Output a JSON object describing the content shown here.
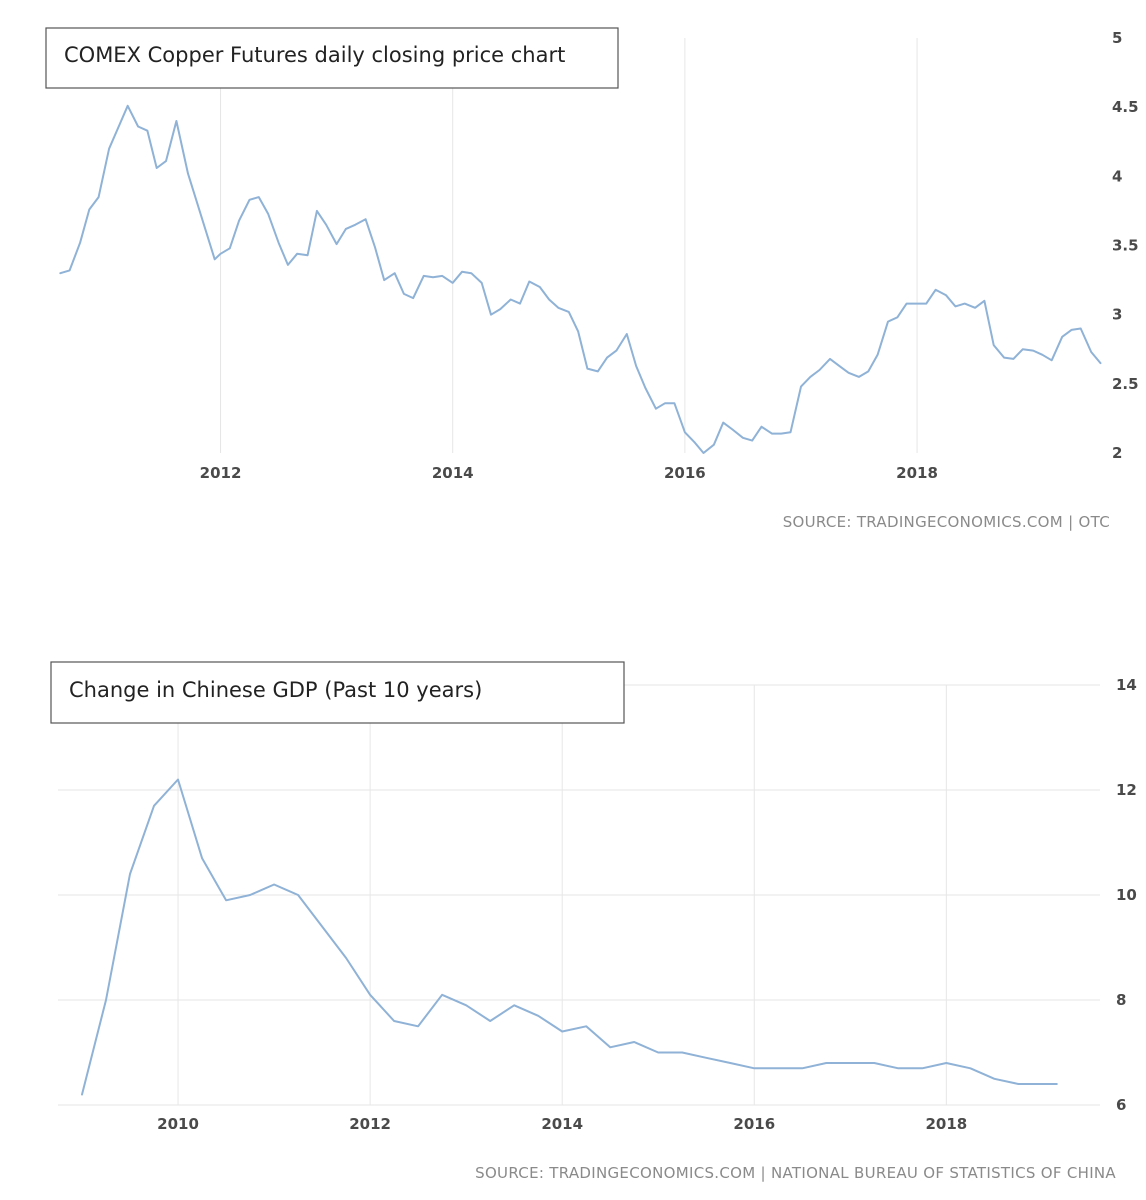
{
  "colors": {
    "line": "#8fb2d6",
    "grid": "#e6e6e6",
    "box_border": "#555555"
  },
  "chart_data": [
    {
      "type": "line",
      "title": "COMEX Copper Futures daily closing price chart",
      "source": "SOURCE: TRADINGECONOMICS.COM | OTC",
      "xlabel": "",
      "ylabel": "",
      "xlim": [
        2010.6,
        2019.55
      ],
      "ylim": [
        2,
        5
      ],
      "x_ticks": [
        2012,
        2014,
        2016,
        2018
      ],
      "y_ticks": [
        2,
        2.5,
        3,
        3.5,
        4,
        4.5,
        5
      ],
      "y_tick_labels": [
        "2",
        "2.5",
        "3",
        "3.5",
        "4",
        "4.5",
        "5"
      ],
      "y_axis_position": "right",
      "grid": "vertical",
      "series": [
        {
          "name": "",
          "points": [
            [
              2010.62,
              3.3
            ],
            [
              2010.7,
              3.32
            ],
            [
              2010.79,
              3.52
            ],
            [
              2010.87,
              3.76
            ],
            [
              2010.95,
              3.85
            ],
            [
              2011.04,
              4.2
            ],
            [
              2011.2,
              4.51
            ],
            [
              2011.29,
              4.36
            ],
            [
              2011.37,
              4.33
            ],
            [
              2011.45,
              4.06
            ],
            [
              2011.53,
              4.11
            ],
            [
              2011.62,
              4.4
            ],
            [
              2011.72,
              4.02
            ],
            [
              2011.95,
              3.4
            ],
            [
              2012.0,
              3.44
            ],
            [
              2012.08,
              3.48
            ],
            [
              2012.16,
              3.68
            ],
            [
              2012.25,
              3.83
            ],
            [
              2012.33,
              3.85
            ],
            [
              2012.41,
              3.73
            ],
            [
              2012.5,
              3.52
            ],
            [
              2012.58,
              3.36
            ],
            [
              2012.66,
              3.44
            ],
            [
              2012.75,
              3.43
            ],
            [
              2012.83,
              3.75
            ],
            [
              2012.91,
              3.65
            ],
            [
              2013.0,
              3.51
            ],
            [
              2013.08,
              3.62
            ],
            [
              2013.16,
              3.65
            ],
            [
              2013.25,
              3.69
            ],
            [
              2013.33,
              3.49
            ],
            [
              2013.41,
              3.25
            ],
            [
              2013.5,
              3.3
            ],
            [
              2013.58,
              3.15
            ],
            [
              2013.66,
              3.12
            ],
            [
              2013.75,
              3.28
            ],
            [
              2013.83,
              3.27
            ],
            [
              2013.91,
              3.28
            ],
            [
              2014.0,
              3.23
            ],
            [
              2014.08,
              3.31
            ],
            [
              2014.16,
              3.3
            ],
            [
              2014.25,
              3.23
            ],
            [
              2014.33,
              3.0
            ],
            [
              2014.41,
              3.04
            ],
            [
              2014.5,
              3.11
            ],
            [
              2014.58,
              3.08
            ],
            [
              2014.66,
              3.24
            ],
            [
              2014.75,
              3.2
            ],
            [
              2014.83,
              3.11
            ],
            [
              2014.91,
              3.05
            ],
            [
              2015.0,
              3.02
            ],
            [
              2015.08,
              2.88
            ],
            [
              2015.16,
              2.61
            ],
            [
              2015.25,
              2.59
            ],
            [
              2015.33,
              2.69
            ],
            [
              2015.41,
              2.74
            ],
            [
              2015.5,
              2.86
            ],
            [
              2015.58,
              2.63
            ],
            [
              2015.66,
              2.47
            ],
            [
              2015.75,
              2.32
            ],
            [
              2015.83,
              2.36
            ],
            [
              2015.91,
              2.36
            ],
            [
              2016.0,
              2.15
            ],
            [
              2016.08,
              2.08
            ],
            [
              2016.16,
              2.0
            ],
            [
              2016.25,
              2.06
            ],
            [
              2016.33,
              2.22
            ],
            [
              2016.41,
              2.17
            ],
            [
              2016.5,
              2.11
            ],
            [
              2016.58,
              2.09
            ],
            [
              2016.66,
              2.19
            ],
            [
              2016.75,
              2.14
            ],
            [
              2016.83,
              2.14
            ],
            [
              2016.91,
              2.15
            ],
            [
              2017.0,
              2.48
            ],
            [
              2017.08,
              2.55
            ],
            [
              2017.16,
              2.6
            ],
            [
              2017.25,
              2.68
            ],
            [
              2017.33,
              2.63
            ],
            [
              2017.41,
              2.58
            ],
            [
              2017.5,
              2.55
            ],
            [
              2017.58,
              2.59
            ],
            [
              2017.66,
              2.71
            ],
            [
              2017.75,
              2.95
            ],
            [
              2017.83,
              2.98
            ],
            [
              2017.91,
              3.08
            ],
            [
              2018.0,
              3.08
            ],
            [
              2018.08,
              3.08
            ],
            [
              2018.16,
              3.18
            ],
            [
              2018.25,
              3.14
            ],
            [
              2018.33,
              3.06
            ],
            [
              2018.41,
              3.08
            ],
            [
              2018.5,
              3.05
            ],
            [
              2018.58,
              3.1
            ],
            [
              2018.66,
              2.78
            ],
            [
              2018.75,
              2.69
            ],
            [
              2018.83,
              2.68
            ],
            [
              2018.91,
              2.75
            ],
            [
              2019.0,
              2.74
            ],
            [
              2019.08,
              2.71
            ],
            [
              2019.16,
              2.67
            ],
            [
              2019.25,
              2.84
            ],
            [
              2019.33,
              2.89
            ],
            [
              2019.41,
              2.9
            ],
            [
              2019.5,
              2.73
            ],
            [
              2019.58,
              2.65
            ]
          ]
        }
      ]
    },
    {
      "type": "line",
      "title": "Change in Chinese GDP (Past 10 years)",
      "source": "SOURCE: TRADINGECONOMICS.COM | NATIONAL BUREAU OF STATISTICS OF CHINA",
      "xlabel": "",
      "ylabel": "",
      "xlim": [
        2008.75,
        2019.6
      ],
      "ylim": [
        6,
        14
      ],
      "x_ticks": [
        2010,
        2012,
        2014,
        2016,
        2018
      ],
      "y_ticks": [
        6,
        8,
        10,
        12,
        14
      ],
      "y_tick_labels": [
        "6",
        "8",
        "10",
        "12",
        "14"
      ],
      "y_axis_position": "right",
      "grid": "both",
      "series": [
        {
          "name": "",
          "points": [
            [
              2009.0,
              6.2
            ],
            [
              2009.25,
              8.0
            ],
            [
              2009.5,
              10.4
            ],
            [
              2009.75,
              11.7
            ],
            [
              2010.0,
              12.2
            ],
            [
              2010.25,
              10.7
            ],
            [
              2010.5,
              9.9
            ],
            [
              2010.75,
              10.0
            ],
            [
              2011.0,
              10.2
            ],
            [
              2011.25,
              10.0
            ],
            [
              2011.5,
              9.4
            ],
            [
              2011.75,
              8.8
            ],
            [
              2012.0,
              8.1
            ],
            [
              2012.25,
              7.6
            ],
            [
              2012.5,
              7.5
            ],
            [
              2012.75,
              8.1
            ],
            [
              2013.0,
              7.9
            ],
            [
              2013.25,
              7.6
            ],
            [
              2013.5,
              7.9
            ],
            [
              2013.75,
              7.7
            ],
            [
              2014.0,
              7.4
            ],
            [
              2014.25,
              7.5
            ],
            [
              2014.5,
              7.1
            ],
            [
              2014.75,
              7.2
            ],
            [
              2015.0,
              7.0
            ],
            [
              2015.25,
              7.0
            ],
            [
              2015.5,
              6.9
            ],
            [
              2015.75,
              6.8
            ],
            [
              2016.0,
              6.7
            ],
            [
              2016.25,
              6.7
            ],
            [
              2016.5,
              6.7
            ],
            [
              2016.75,
              6.8
            ],
            [
              2017.0,
              6.8
            ],
            [
              2017.25,
              6.8
            ],
            [
              2017.5,
              6.7
            ],
            [
              2017.75,
              6.7
            ],
            [
              2018.0,
              6.8
            ],
            [
              2018.25,
              6.7
            ],
            [
              2018.5,
              6.5
            ],
            [
              2018.75,
              6.4
            ],
            [
              2019.0,
              6.4
            ],
            [
              2019.15,
              6.4
            ]
          ]
        }
      ]
    }
  ]
}
